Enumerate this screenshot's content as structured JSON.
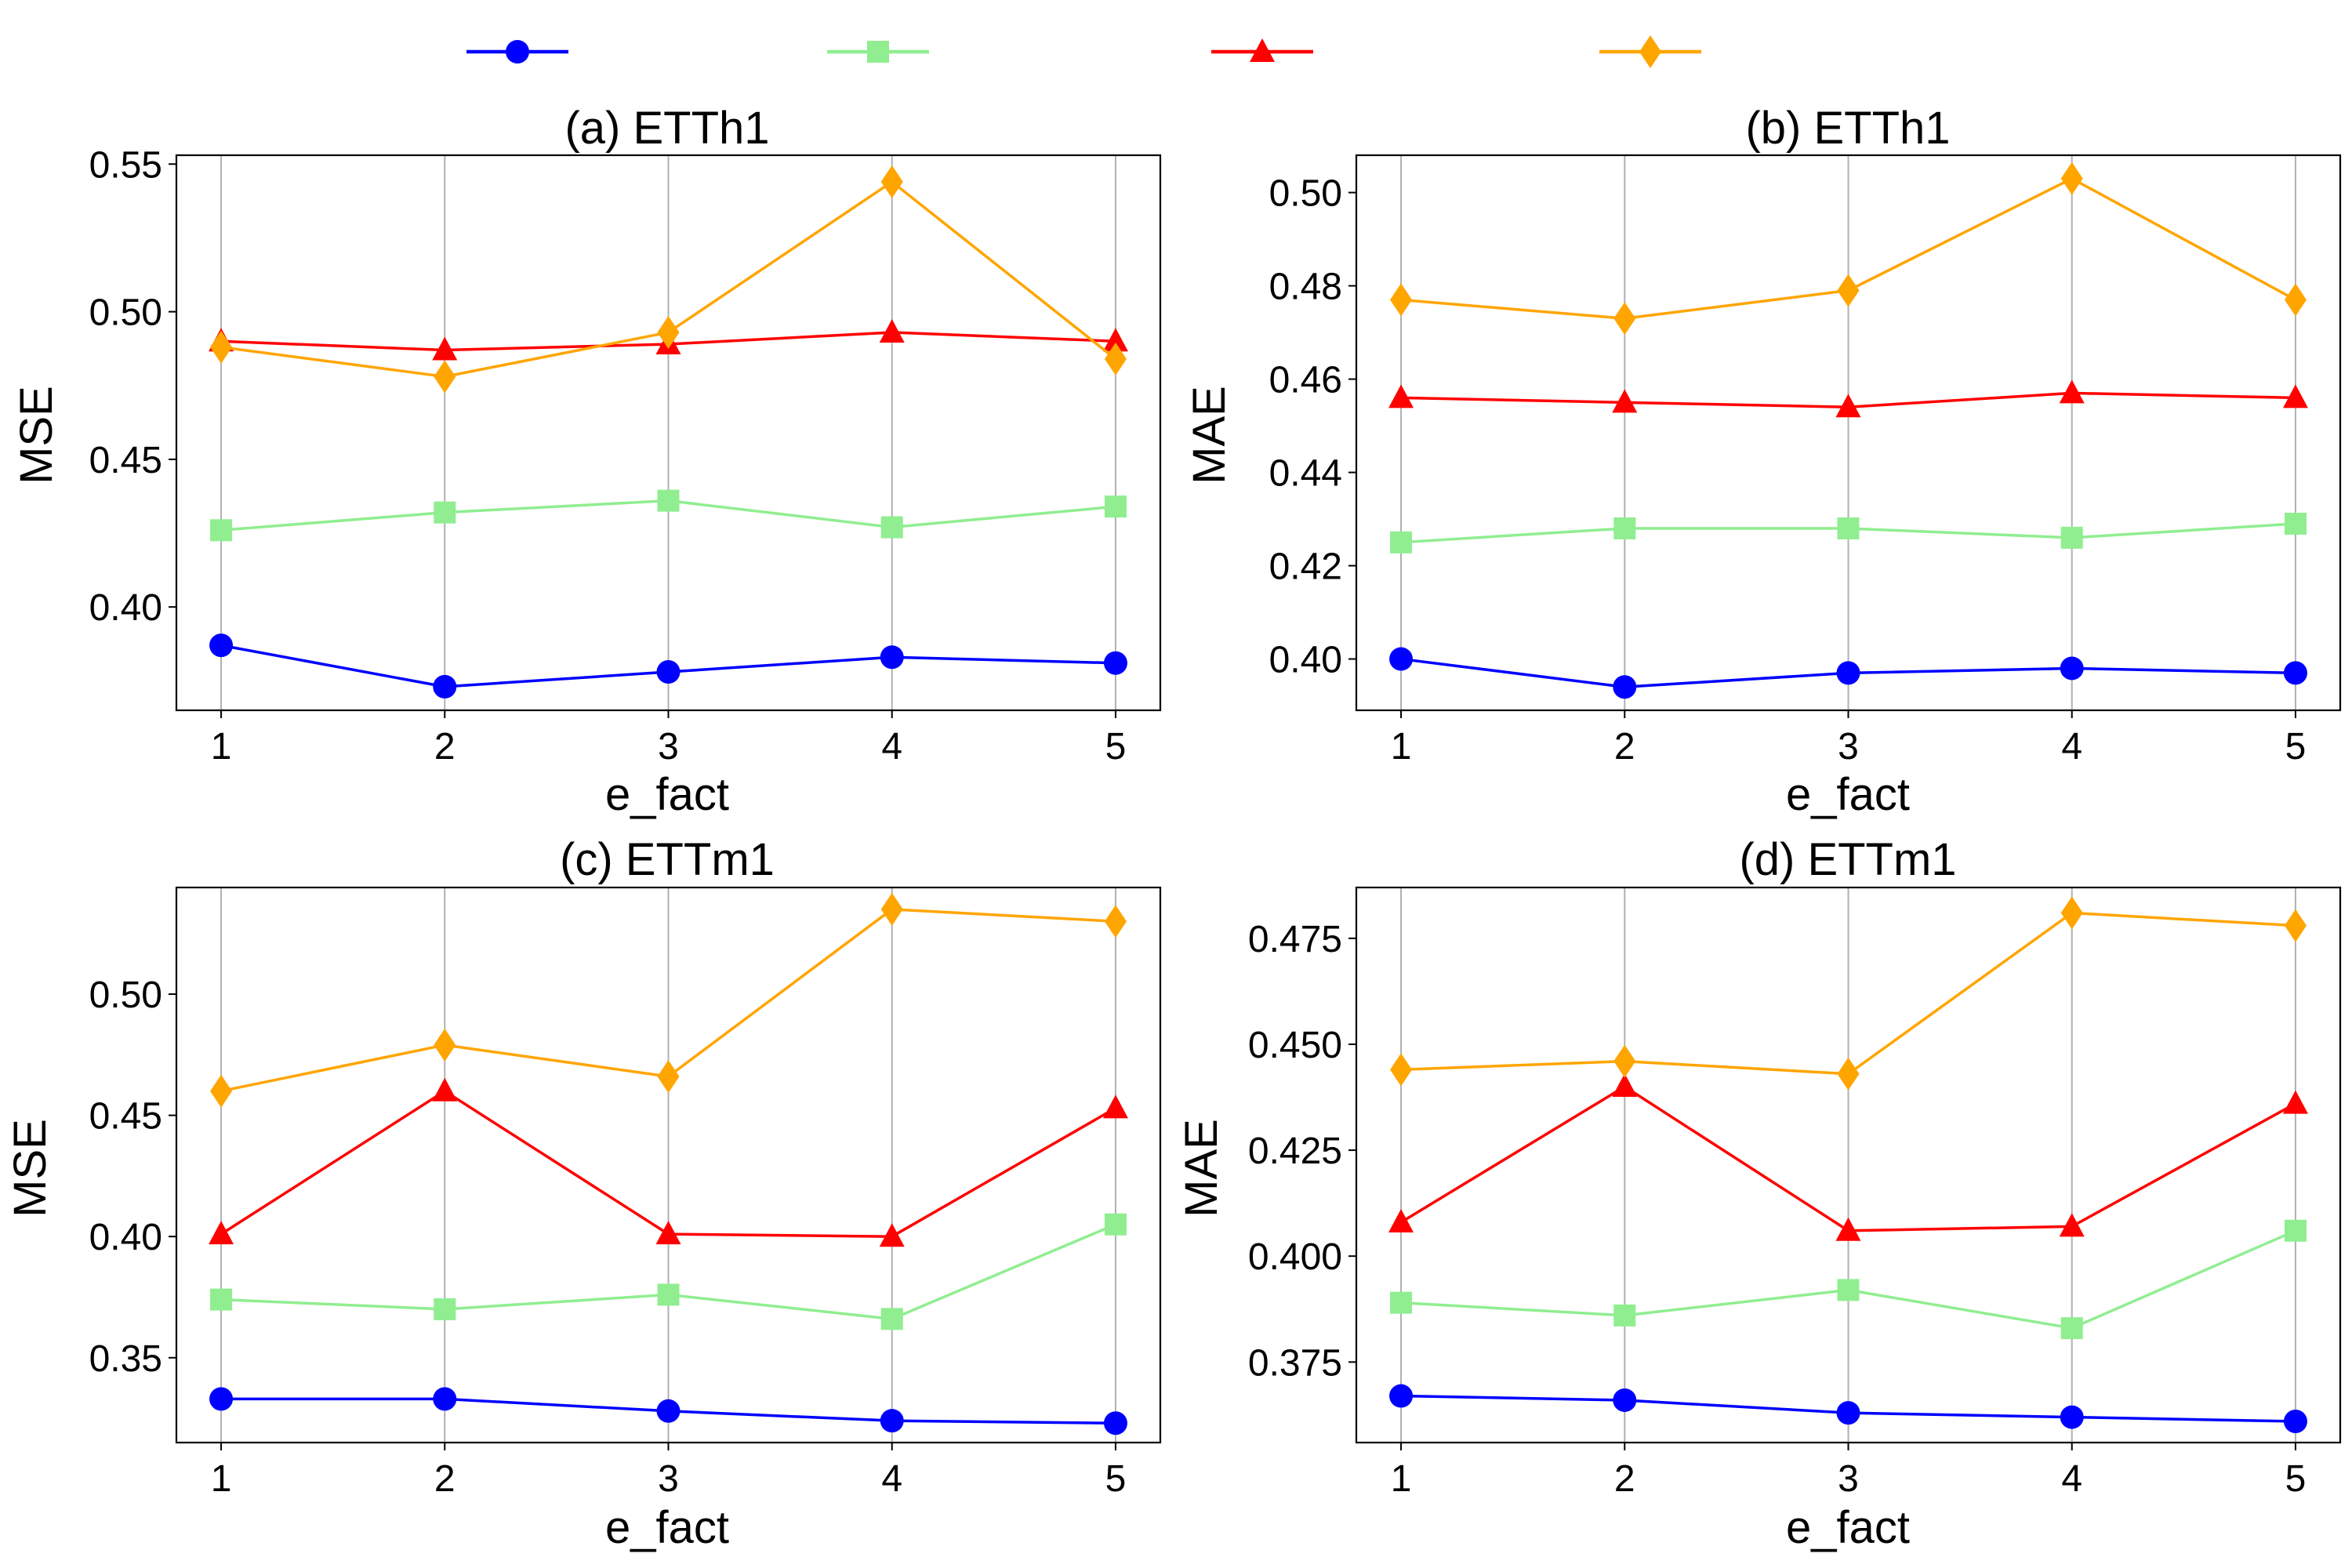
{
  "chart_data": {
    "type": "line",
    "legend": {
      "placement": "top-center",
      "entries": [
        {
          "color": "#0000ff",
          "marker": "circle"
        },
        {
          "color": "#90ee90",
          "marker": "square"
        },
        {
          "color": "#ff0000",
          "marker": "triangle"
        },
        {
          "color": "#ffa500",
          "marker": "diamond"
        }
      ]
    },
    "panels": [
      {
        "id": "a",
        "title": "(a) ETTh1",
        "xlabel": "e_fact",
        "ylabel": "MSE",
        "x": [
          1,
          2,
          3,
          4,
          5
        ],
        "xticks": [
          "1",
          "2",
          "3",
          "4",
          "5"
        ],
        "xlim": [
          0.8,
          5.2
        ],
        "ylim": [
          0.365,
          0.553
        ],
        "yticks": [
          0.4,
          0.45,
          0.5,
          0.55
        ],
        "ytick_labels": [
          "0.40",
          "0.45",
          "0.50",
          "0.55"
        ],
        "grid": "x",
        "series": [
          {
            "color": "#0000ff",
            "marker": "circle",
            "values": [
              0.387,
              0.373,
              0.378,
              0.383,
              0.381
            ]
          },
          {
            "color": "#90ee90",
            "marker": "square",
            "values": [
              0.426,
              0.432,
              0.436,
              0.427,
              0.434
            ]
          },
          {
            "color": "#ff0000",
            "marker": "triangle",
            "values": [
              0.49,
              0.487,
              0.489,
              0.493,
              0.49
            ]
          },
          {
            "color": "#ffa500",
            "marker": "diamond",
            "values": [
              0.488,
              0.478,
              0.493,
              0.544,
              0.484
            ]
          }
        ]
      },
      {
        "id": "b",
        "title": "(b) ETTh1",
        "xlabel": "e_fact",
        "ylabel": "MAE",
        "x": [
          1,
          2,
          3,
          4,
          5
        ],
        "xticks": [
          "1",
          "2",
          "3",
          "4",
          "5"
        ],
        "xlim": [
          0.8,
          5.2
        ],
        "ylim": [
          0.389,
          0.508
        ],
        "yticks": [
          0.4,
          0.42,
          0.44,
          0.46,
          0.48,
          0.5
        ],
        "ytick_labels": [
          "0.40",
          "0.42",
          "0.44",
          "0.46",
          "0.48",
          "0.50"
        ],
        "grid": "x",
        "series": [
          {
            "color": "#0000ff",
            "marker": "circle",
            "values": [
              0.4,
              0.394,
              0.397,
              0.398,
              0.397
            ]
          },
          {
            "color": "#90ee90",
            "marker": "square",
            "values": [
              0.425,
              0.428,
              0.428,
              0.426,
              0.429
            ]
          },
          {
            "color": "#ff0000",
            "marker": "triangle",
            "values": [
              0.456,
              0.455,
              0.454,
              0.457,
              0.456
            ]
          },
          {
            "color": "#ffa500",
            "marker": "diamond",
            "values": [
              0.477,
              0.473,
              0.479,
              0.503,
              0.477
            ]
          }
        ]
      },
      {
        "id": "c",
        "title": "(c) ETTm1",
        "xlabel": "e_fact",
        "ylabel": "MSE",
        "x": [
          1,
          2,
          3,
          4,
          5
        ],
        "xticks": [
          "1",
          "2",
          "3",
          "4",
          "5"
        ],
        "xlim": [
          0.8,
          5.2
        ],
        "ylim": [
          0.315,
          0.544
        ],
        "yticks": [
          0.35,
          0.4,
          0.45,
          0.5
        ],
        "ytick_labels": [
          "0.35",
          "0.40",
          "0.45",
          "0.50"
        ],
        "grid": "x",
        "series": [
          {
            "color": "#0000ff",
            "marker": "circle",
            "values": [
              0.333,
              0.333,
              0.328,
              0.324,
              0.323
            ]
          },
          {
            "color": "#90ee90",
            "marker": "square",
            "values": [
              0.374,
              0.37,
              0.376,
              0.366,
              0.405
            ]
          },
          {
            "color": "#ff0000",
            "marker": "triangle",
            "values": [
              0.401,
              0.46,
              0.401,
              0.4,
              0.453
            ]
          },
          {
            "color": "#ffa500",
            "marker": "diamond",
            "values": [
              0.46,
              0.479,
              0.466,
              0.535,
              0.53
            ]
          }
        ]
      },
      {
        "id": "d",
        "title": "(d) ETTm1",
        "xlabel": "e_fact",
        "ylabel": "MAE",
        "x": [
          1,
          2,
          3,
          4,
          5
        ],
        "xticks": [
          "1",
          "2",
          "3",
          "4",
          "5"
        ],
        "xlim": [
          0.8,
          5.2
        ],
        "ylim": [
          0.356,
          0.487
        ],
        "yticks": [
          0.375,
          0.4,
          0.425,
          0.45,
          0.475
        ],
        "ytick_labels": [
          "0.375",
          "0.400",
          "0.425",
          "0.450",
          "0.475"
        ],
        "grid": "x",
        "series": [
          {
            "color": "#0000ff",
            "marker": "circle",
            "values": [
              0.367,
              0.366,
              0.363,
              0.362,
              0.361
            ]
          },
          {
            "color": "#90ee90",
            "marker": "square",
            "values": [
              0.389,
              0.386,
              0.392,
              0.383,
              0.406
            ]
          },
          {
            "color": "#ff0000",
            "marker": "triangle",
            "values": [
              0.408,
              0.44,
              0.406,
              0.407,
              0.436
            ]
          },
          {
            "color": "#ffa500",
            "marker": "diamond",
            "values": [
              0.444,
              0.446,
              0.443,
              0.481,
              0.478
            ]
          }
        ]
      }
    ]
  }
}
